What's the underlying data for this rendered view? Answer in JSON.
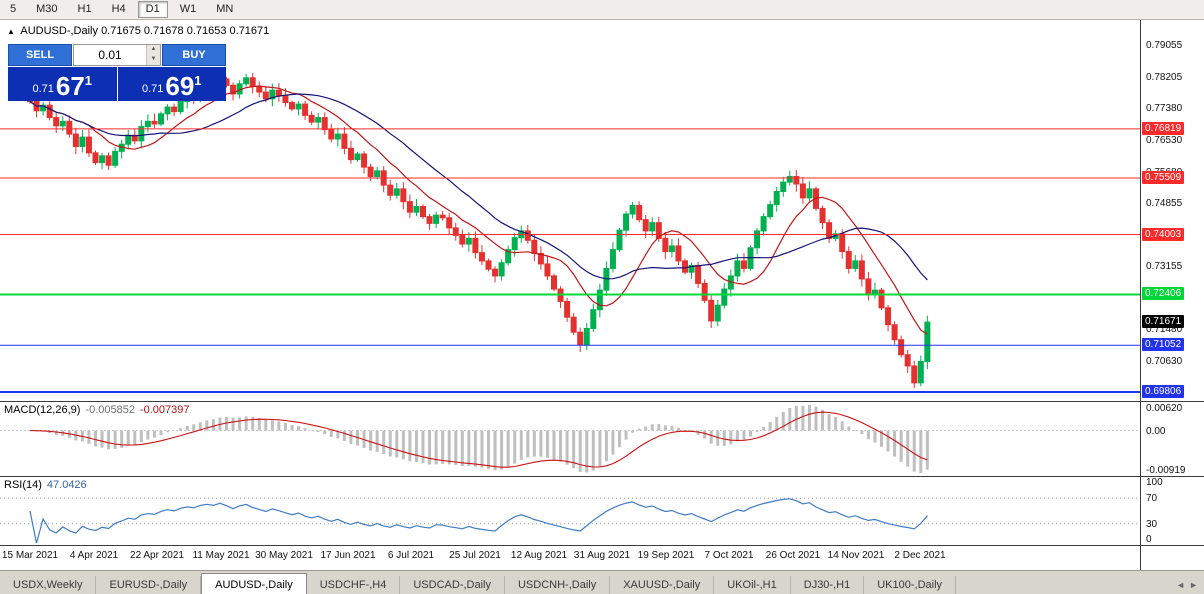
{
  "toolbar": {
    "timeframes": [
      "5",
      "M30",
      "H1",
      "H4",
      "D1",
      "W1",
      "MN"
    ],
    "active_timeframe": "D1"
  },
  "chart": {
    "collapse_glyph": "▲",
    "title": "AUDUSD-,Daily",
    "quote_line": "0.71675 0.71678 0.71653 0.71671"
  },
  "trade_panel": {
    "sell_label": "SELL",
    "buy_label": "BUY",
    "volume": "0.01",
    "spin_up": "▲",
    "spin_down": "▼",
    "bid": {
      "prefix": "0.71",
      "big": "67",
      "sup": "1"
    },
    "ask": {
      "prefix": "0.71",
      "big": "69",
      "sup": "1"
    }
  },
  "indicators": {
    "macd": {
      "name": "MACD(12,26,9)",
      "main_value": "-0.005852",
      "signal_value": "-0.007397"
    },
    "rsi": {
      "name": "RSI(14)",
      "value": "47.0426"
    }
  },
  "price_marker": {
    "label": "0.71671",
    "bg": "#000000"
  },
  "colors": {
    "bull": "#00b050",
    "bear": "#e53030",
    "ma_fast": "#c01818",
    "ma_slow": "#141478",
    "macd_hist": "#bfbfbf",
    "macd_signal": "#cc1111",
    "rsi_line": "#3f7cc4"
  },
  "tabs": [
    {
      "label": "USDX,Weekly",
      "active": false
    },
    {
      "label": "EURUSD-,Daily",
      "active": false
    },
    {
      "label": "AUDUSD-,Daily",
      "active": true
    },
    {
      "label": "USDCHF-,H4",
      "active": false
    },
    {
      "label": "USDCAD-,Daily",
      "active": false
    },
    {
      "label": "USDCNH-,Daily",
      "active": false
    },
    {
      "label": "XAUUSD-,Daily",
      "active": false
    },
    {
      "label": "UKOil-,H1",
      "active": false
    },
    {
      "label": "DJ30-,H1",
      "active": false
    },
    {
      "label": "UK100-,Daily",
      "active": false
    }
  ],
  "tab_scroll": {
    "left": "◄",
    "right": "►"
  },
  "chart_data": {
    "type": "candlestick",
    "symbol": "AUDUSD",
    "period": "Daily",
    "closes": [
      0.7755,
      0.773,
      0.7745,
      0.7712,
      0.769,
      0.7702,
      0.7668,
      0.7635,
      0.766,
      0.7618,
      0.7592,
      0.761,
      0.7585,
      0.7622,
      0.7641,
      0.7665,
      0.765,
      0.7688,
      0.7702,
      0.7695,
      0.7722,
      0.774,
      0.7728,
      0.7755,
      0.777,
      0.7762,
      0.7788,
      0.78,
      0.7792,
      0.7815,
      0.7798,
      0.7775,
      0.7802,
      0.7818,
      0.7795,
      0.778,
      0.7762,
      0.7785,
      0.777,
      0.7752,
      0.7735,
      0.7748,
      0.7718,
      0.77,
      0.7712,
      0.768,
      0.7655,
      0.7668,
      0.763,
      0.76,
      0.7615,
      0.758,
      0.7555,
      0.757,
      0.7532,
      0.7505,
      0.7522,
      0.7488,
      0.746,
      0.7475,
      0.7448,
      0.743,
      0.7452,
      0.7445,
      0.7418,
      0.7398,
      0.7375,
      0.739,
      0.7352,
      0.733,
      0.7308,
      0.729,
      0.7325,
      0.736,
      0.7392,
      0.741,
      0.7385,
      0.735,
      0.7322,
      0.729,
      0.7255,
      0.7222,
      0.718,
      0.714,
      0.7106,
      0.715,
      0.72,
      0.7252,
      0.731,
      0.736,
      0.7412,
      0.7455,
      0.7478,
      0.744,
      0.741,
      0.7432,
      0.739,
      0.7355,
      0.737,
      0.733,
      0.73,
      0.7318,
      0.727,
      0.7225,
      0.717,
      0.7212,
      0.7255,
      0.729,
      0.733,
      0.731,
      0.7365,
      0.741,
      0.7448,
      0.748,
      0.7515,
      0.754,
      0.7555,
      0.7535,
      0.7498,
      0.7522,
      0.747,
      0.7432,
      0.739,
      0.7402,
      0.7355,
      0.731,
      0.733,
      0.7282,
      0.724,
      0.7252,
      0.7205,
      0.716,
      0.712,
      0.708,
      0.705,
      0.7005,
      0.7062,
      0.7167
    ],
    "hlines": [
      {
        "price": 0.76819,
        "label": "0.76819",
        "color": "#ff2a2a",
        "width": 1
      },
      {
        "price": 0.75509,
        "label": "0.75509",
        "color": "#ff2a2a",
        "width": 1
      },
      {
        "price": 0.74003,
        "label": "0.74003",
        "color": "#ff2a2a",
        "width": 1
      },
      {
        "price": 0.72406,
        "label": "0.72406",
        "color": "#00d83a",
        "width": 2
      },
      {
        "price": 0.71052,
        "label": "0.71052",
        "color": "#2233ee",
        "width": 1
      },
      {
        "price": 0.69806,
        "label": "0.69806",
        "color": "#2233ee",
        "width": 2
      }
    ],
    "y_axis_labels": [
      "0.79055",
      "0.78205",
      "0.77380",
      "0.76530",
      "0.75680",
      "0.74855",
      "0.74005",
      "0.73155",
      "0.72330",
      "0.71480",
      "0.70630",
      "0.69780"
    ],
    "macd_axis_labels": [
      "0.00620",
      "0.00",
      "-0.00919"
    ],
    "rsi_axis_labels": [
      "100",
      "70",
      "30",
      "0"
    ],
    "rsi_levels": [
      70,
      30
    ],
    "dates": [
      "15 Mar 2021",
      "4 Apr 2021",
      "22 Apr 2021",
      "11 May 2021",
      "30 May 2021",
      "17 Jun 2021",
      "6 Jul 2021",
      "25 Jul 2021",
      "12 Aug 2021",
      "31 Aug 2021",
      "19 Sep 2021",
      "7 Oct 2021",
      "26 Oct 2021",
      "14 Nov 2021",
      "2 Dec 2021"
    ]
  }
}
